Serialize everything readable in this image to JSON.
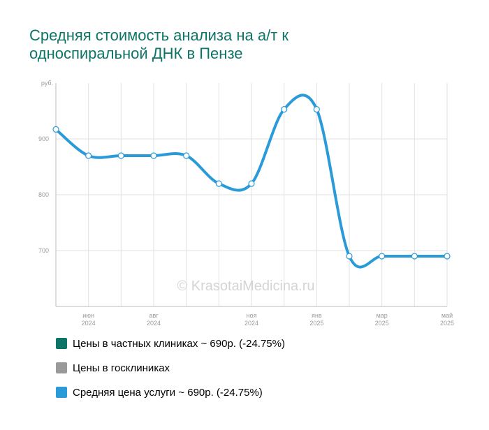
{
  "title_lines": [
    "Средняя стоимость анализа на а/т к",
    "односпиральной ДНК в Пензе"
  ],
  "watermark": "© KrasotaiMedicina.ru",
  "legend": [
    {
      "label": "Цены в частных клиниках ~ 690р. (-24.75%)",
      "color": "#0e7466"
    },
    {
      "label": "Цены в госклиниках",
      "color": "#9a9a9a"
    },
    {
      "label": "Средняя цена услуги ~ 690р. (-24.75%)",
      "color": "#2b9ad8"
    }
  ],
  "chart_data": {
    "type": "line",
    "title": "Средняя стоимость анализа на а/т к односпиральной ДНК в Пензе",
    "ylabel": "руб.",
    "ylim": [
      600,
      1000
    ],
    "yticks": [
      700,
      800,
      900
    ],
    "grid": true,
    "x": [
      "2024-05",
      "2024-06",
      "2024-07",
      "2024-08",
      "2024-09",
      "2024-10",
      "2024-11",
      "2024-12",
      "2025-01",
      "2025-02",
      "2025-03",
      "2025-04",
      "2025-05"
    ],
    "xtick_labels": [
      {
        "month": "июн",
        "year": "2024"
      },
      {
        "month": "авг",
        "year": "2024"
      },
      {
        "month": "ноя",
        "year": "2024"
      },
      {
        "month": "янв",
        "year": "2025"
      },
      {
        "month": "мар",
        "year": "2025"
      },
      {
        "month": "май",
        "year": "2025"
      }
    ],
    "series": [
      {
        "name": "Средняя цена услуги",
        "color": "#2b9ad8",
        "values": [
          917,
          870,
          870,
          870,
          870,
          820,
          820,
          953,
          953,
          690,
          690,
          690,
          690
        ]
      }
    ]
  }
}
